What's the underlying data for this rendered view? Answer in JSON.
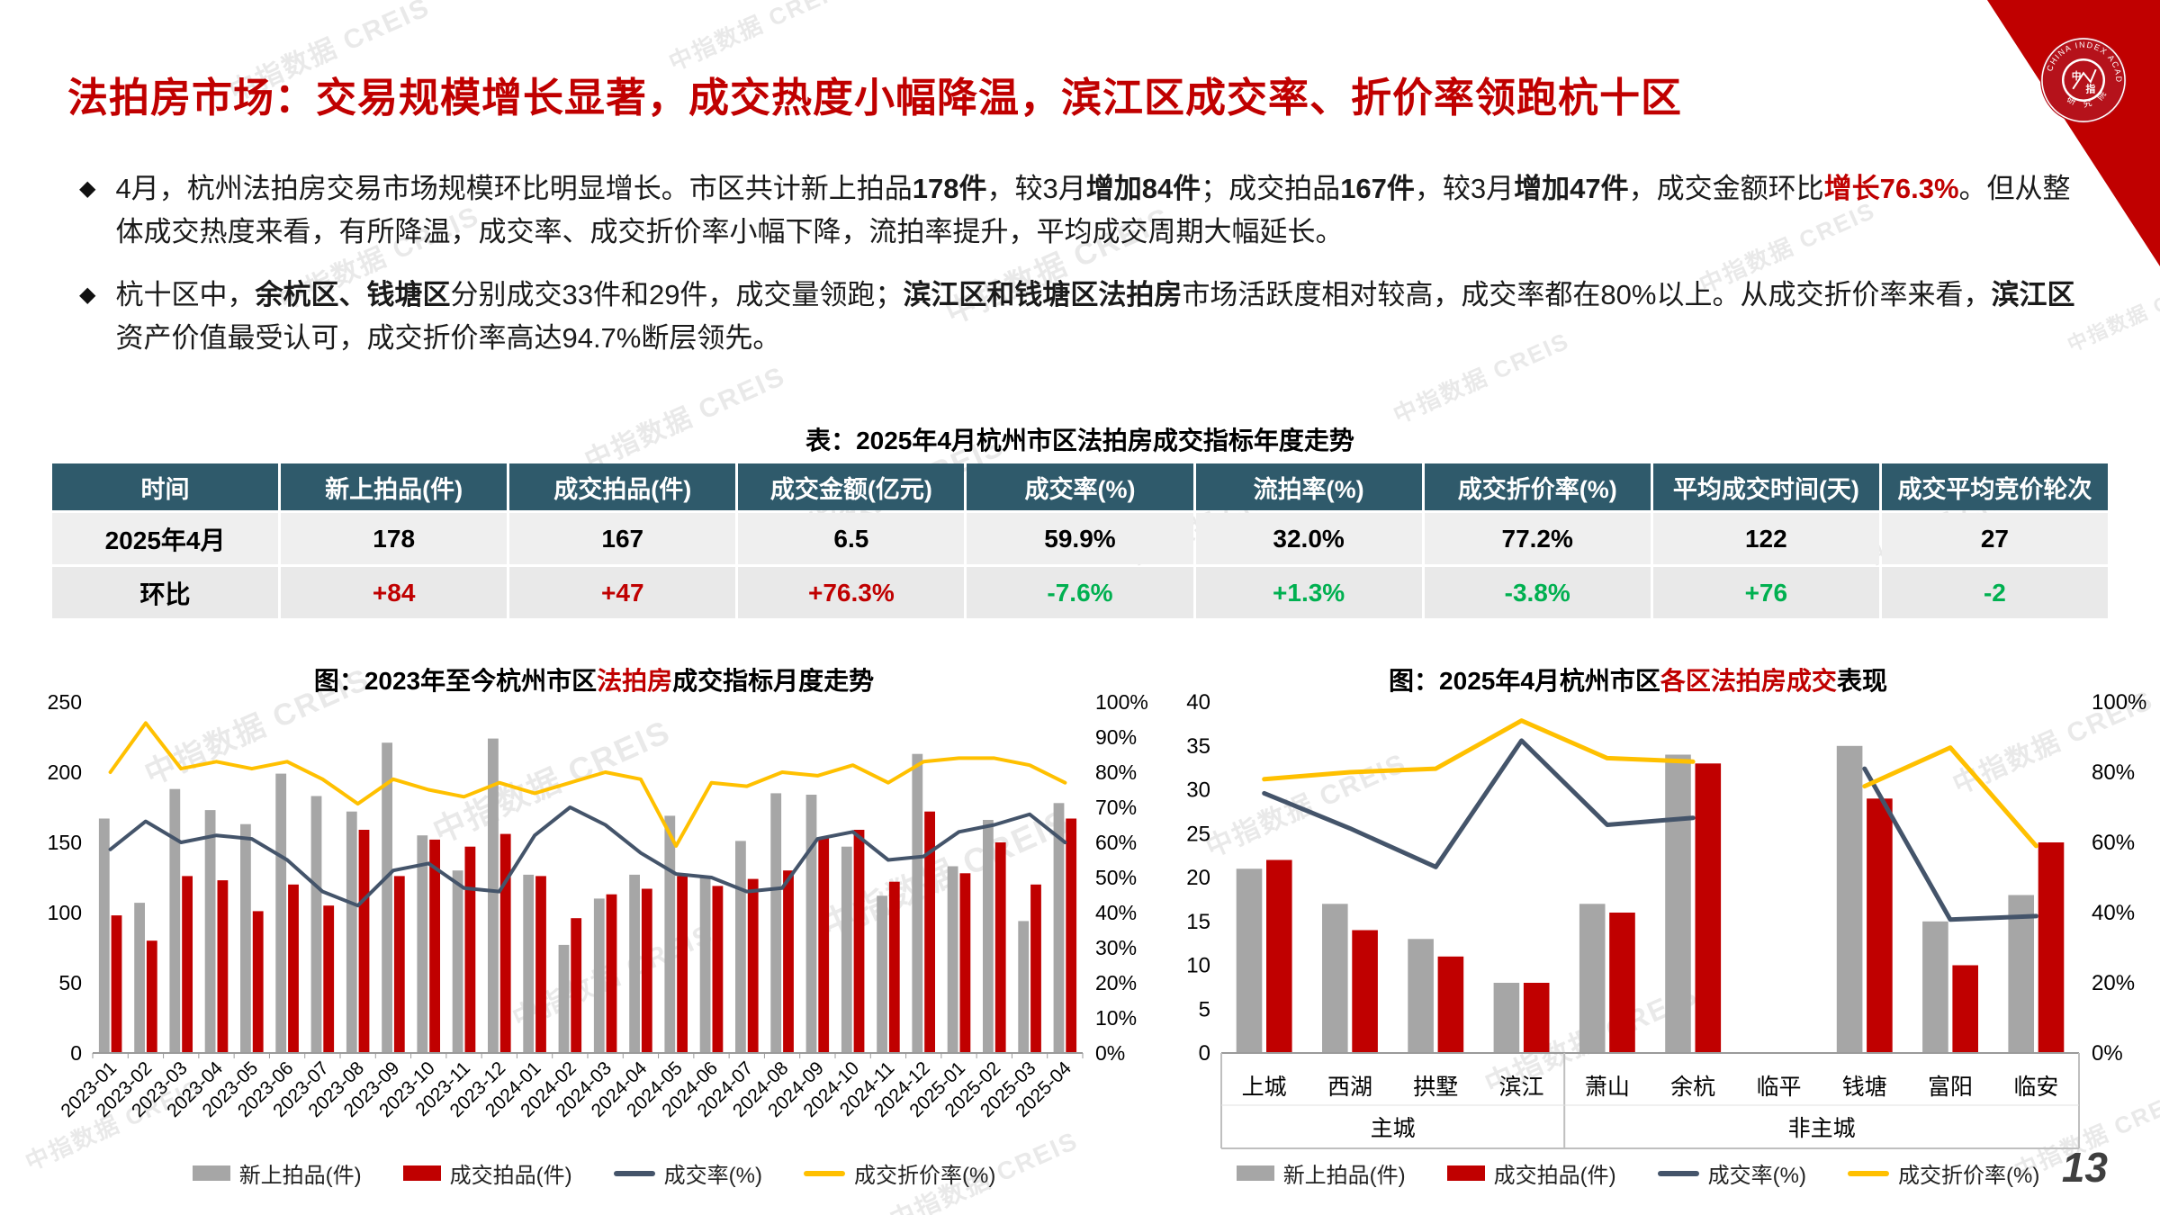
{
  "page": {
    "page_number": "13"
  },
  "watermark": {
    "text": "中指数据  CREIS"
  },
  "logo": {
    "arc_text_top": "CHINA INDEX ACADEMY",
    "arc_text_bottom": "研 究 院",
    "monogram": "中指"
  },
  "title": "法拍房市场：交易规模增长显著，成交热度小幅降温，滨江区成交率、折价率领跑杭十区",
  "bullets": [
    {
      "segments": [
        {
          "text": "4月，杭州法拍房交易市场规模环比明显增长。市区共计新上拍品",
          "style": "plain"
        },
        {
          "text": "178件",
          "style": "bold"
        },
        {
          "text": "，较3月",
          "style": "plain"
        },
        {
          "text": "增加84件",
          "style": "bold"
        },
        {
          "text": "；成交拍品",
          "style": "plain"
        },
        {
          "text": "167件",
          "style": "bold"
        },
        {
          "text": "，较3月",
          "style": "plain"
        },
        {
          "text": "增加47件",
          "style": "bold"
        },
        {
          "text": "，成交金额环比",
          "style": "plain"
        },
        {
          "text": "增长76.3%",
          "style": "bold-red"
        },
        {
          "text": "。但从整体成交热度来看，有所降温，成交率、成交折价率小幅下降，流拍率提升，平均成交周期大幅延长。",
          "style": "plain"
        }
      ]
    },
    {
      "segments": [
        {
          "text": "杭十区中，",
          "style": "plain"
        },
        {
          "text": "余杭区、钱塘区",
          "style": "bold"
        },
        {
          "text": "分别成交33件和29件，成交量领跑；",
          "style": "plain"
        },
        {
          "text": "滨江区和钱塘区法拍房",
          "style": "bold"
        },
        {
          "text": "市场活跃度相对较高，成交率都在80%以上。从成交折价率来看，",
          "style": "plain"
        },
        {
          "text": "滨江区",
          "style": "bold"
        },
        {
          "text": "资产价值最受认可，成交折价率高达94.7%断层领先。",
          "style": "plain"
        }
      ]
    }
  ],
  "table": {
    "title": "表：2025年4月杭州市区法拍房成交指标年度走势",
    "headers": [
      "时间",
      "新上拍品(件)",
      "成交拍品(件)",
      "成交金额(亿元)",
      "成交率(%)",
      "流拍率(%)",
      "成交折价率(%)",
      "平均成交时间(天)",
      "成交平均竞价轮次"
    ],
    "rows": [
      {
        "cells": [
          "2025年4月",
          "178",
          "167",
          "6.5",
          "59.9%",
          "32.0%",
          "77.2%",
          "122",
          "27"
        ],
        "colors": [
          "black",
          "black",
          "black",
          "black",
          "black",
          "black",
          "black",
          "black",
          "black"
        ]
      },
      {
        "cells": [
          "环比",
          "+84",
          "+47",
          "+76.3%",
          "-7.6%",
          "+1.3%",
          "-3.8%",
          "+76",
          "-2"
        ],
        "colors": [
          "black",
          "red",
          "red",
          "red",
          "green",
          "green",
          "green",
          "green",
          "green"
        ]
      }
    ]
  },
  "chart_data": [
    {
      "type": "bar-line-combo",
      "title_segments": [
        {
          "text": "图：2023年至今杭州市区",
          "color": "#000000"
        },
        {
          "text": "法拍房",
          "color": "#C00000"
        },
        {
          "text": "成交指标月度走势",
          "color": "#000000"
        }
      ],
      "categories": [
        "2023-01",
        "2023-02",
        "2023-03",
        "2023-04",
        "2023-05",
        "2023-06",
        "2023-07",
        "2023-08",
        "2023-09",
        "2023-10",
        "2023-11",
        "2023-12",
        "2024-01",
        "2024-02",
        "2024-03",
        "2024-04",
        "2024-05",
        "2024-06",
        "2024-07",
        "2024-08",
        "2024-09",
        "2024-10",
        "2024-11",
        "2024-12",
        "2025-01",
        "2025-02",
        "2025-03",
        "2025-04"
      ],
      "series": [
        {
          "name": "新上拍品(件)",
          "type": "bar",
          "axis": "left",
          "color": "#A6A6A6",
          "values": [
            167,
            107,
            188,
            173,
            163,
            199,
            183,
            172,
            221,
            155,
            130,
            224,
            127,
            77,
            110,
            127,
            169,
            125,
            151,
            185,
            184,
            147,
            112,
            213,
            133,
            166,
            94,
            178
          ]
        },
        {
          "name": "成交拍品(件)",
          "type": "bar",
          "axis": "left",
          "color": "#C00000",
          "values": [
            98,
            80,
            126,
            123,
            101,
            120,
            105,
            159,
            126,
            152,
            147,
            156,
            126,
            96,
            113,
            117,
            126,
            119,
            124,
            130,
            153,
            159,
            122,
            172,
            128,
            150,
            120,
            167
          ]
        },
        {
          "name": "成交率(%)",
          "type": "line",
          "axis": "right",
          "color": "#44546A",
          "values": [
            58,
            66,
            60,
            62,
            61,
            55,
            46,
            42,
            52,
            54,
            47,
            46,
            62,
            70,
            65,
            57,
            51,
            50,
            46,
            47,
            61,
            63,
            55,
            56,
            63,
            65,
            68,
            60
          ]
        },
        {
          "name": "成交折价率(%)",
          "type": "line",
          "axis": "right",
          "color": "#FFC000",
          "values": [
            80,
            94,
            81,
            83,
            81,
            83,
            78,
            71,
            78,
            75,
            73,
            77,
            74,
            77,
            80,
            78,
            59,
            77,
            76,
            80,
            79,
            82,
            77,
            83,
            84,
            84,
            82,
            77
          ]
        }
      ],
      "y_left": {
        "min": 0,
        "max": 250,
        "step": 50
      },
      "y_right": {
        "min": 0,
        "max": 100,
        "step": 10,
        "suffix": "%"
      },
      "x_label_rotate": true,
      "grid": false,
      "legend_position": "bottom"
    },
    {
      "type": "bar-line-combo",
      "title_segments": [
        {
          "text": "图：2025年4月杭州市区",
          "color": "#000000"
        },
        {
          "text": "各区法拍房成交",
          "color": "#C00000"
        },
        {
          "text": "表现",
          "color": "#000000"
        }
      ],
      "categories": [
        "上城",
        "西湖",
        "拱墅",
        "滨江",
        "萧山",
        "余杭",
        "临平",
        "钱塘",
        "富阳",
        "临安"
      ],
      "groups": [
        {
          "label": "主城",
          "count": 4
        },
        {
          "label": "非主城",
          "count": 6
        }
      ],
      "series": [
        {
          "name": "新上拍品(件)",
          "type": "bar",
          "axis": "left",
          "color": "#A6A6A6",
          "values": [
            21,
            17,
            13,
            8,
            17,
            34,
            null,
            35,
            15,
            18
          ]
        },
        {
          "name": "成交拍品(件)",
          "type": "bar",
          "axis": "left",
          "color": "#C00000",
          "values": [
            22,
            14,
            11,
            8,
            16,
            33,
            null,
            29,
            10,
            24
          ]
        },
        {
          "name": "成交率(%)",
          "type": "line",
          "axis": "right",
          "color": "#44546A",
          "values": [
            74,
            64,
            53,
            89,
            65,
            67,
            null,
            81,
            38,
            39
          ]
        },
        {
          "name": "成交折价率(%)",
          "type": "line",
          "axis": "right",
          "color": "#FFC000",
          "values": [
            78,
            80,
            81,
            94.7,
            84,
            83,
            null,
            76,
            87,
            59
          ]
        }
      ],
      "y_left": {
        "min": 0,
        "max": 40,
        "step": 5
      },
      "y_right": {
        "min": 0,
        "max": 100,
        "step": 20,
        "suffix": "%"
      },
      "x_label_rotate": false,
      "grid": false,
      "legend_position": "bottom"
    }
  ]
}
